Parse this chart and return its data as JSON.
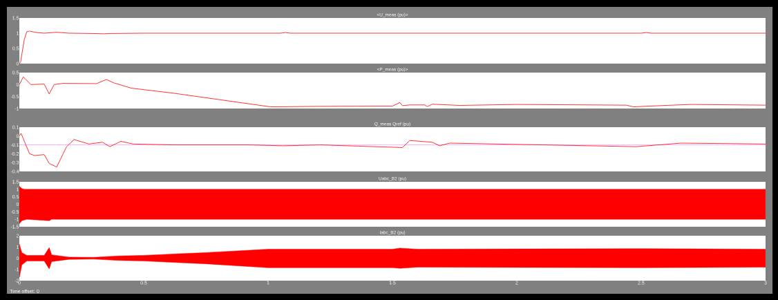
{
  "chart_data": [
    {
      "type": "line",
      "title": "<U_meas (pu)>",
      "xlim": [
        0,
        3
      ],
      "ylim": [
        0,
        1.5
      ],
      "yticks": [
        0,
        0.5,
        1,
        1.5
      ],
      "tick_labels": "y",
      "series": [
        {
          "color": "#ff0000",
          "x": [
            0,
            0.005,
            0.02,
            0.03,
            0.04,
            0.07,
            0.1,
            0.15,
            0.2,
            0.3,
            0.34,
            0.36,
            0.5,
            1.05,
            1.07,
            1.09,
            2.5,
            2.52,
            2.54,
            3
          ],
          "values": [
            0,
            0.05,
            0.8,
            1.05,
            1.07,
            1.02,
            1.0,
            1.03,
            1.0,
            0.99,
            0.98,
            0.99,
            1.0,
            1.0,
            1.02,
            1.0,
            1.0,
            1.02,
            1.0,
            1.0
          ]
        }
      ]
    },
    {
      "type": "line",
      "title": "<P_meas (pu)>",
      "xlim": [
        0,
        3
      ],
      "ylim": [
        -1,
        0.5
      ],
      "yticks": [
        -1,
        -0.5,
        0,
        0.5
      ],
      "tick_labels": "y",
      "series": [
        {
          "color": "#ff0000",
          "x": [
            0,
            0.016,
            0.046,
            0.1,
            0.12,
            0.14,
            0.175,
            0.31,
            0.35,
            0.38,
            0.45,
            0.62,
            1.01,
            1.21,
            1.5,
            1.53,
            1.54,
            1.57,
            1.63,
            1.64,
            1.66,
            1.77,
            2.0,
            2.44,
            2.47,
            2.6,
            2.7,
            3
          ],
          "values": [
            0,
            0.32,
            0,
            0.02,
            -0.39,
            0,
            0.05,
            0.04,
            0.21,
            0.07,
            -0.15,
            -0.36,
            -0.93,
            -0.91,
            -0.9,
            -0.75,
            -0.88,
            -0.85,
            -0.85,
            -0.92,
            -0.82,
            -0.87,
            -0.83,
            -0.86,
            -0.93,
            -0.87,
            -0.83,
            -0.86
          ]
        }
      ]
    },
    {
      "type": "line",
      "title": "Q_meas Qref (pu)",
      "xlim": [
        0,
        3
      ],
      "ylim": [
        -0.4,
        0.1
      ],
      "yticks": [
        -0.4,
        -0.3,
        -0.2,
        -0.1,
        0,
        0.1
      ],
      "tick_labels": "y",
      "series": [
        {
          "color": "#ff99ff",
          "x": [
            0,
            3
          ],
          "values": [
            -0.1,
            -0.1
          ]
        },
        {
          "color": "#ff0000",
          "x": [
            0,
            0.007,
            0.041,
            0.061,
            0.1,
            0.12,
            0.135,
            0.15,
            0.19,
            0.22,
            0.28,
            0.334,
            0.364,
            0.408,
            0.458,
            0.62,
            0.92,
            1.06,
            1.21,
            1.54,
            1.57,
            1.66,
            1.69,
            1.73,
            2.48,
            2.66,
            3
          ],
          "values": [
            0,
            0.03,
            -0.2,
            -0.22,
            -0.21,
            -0.31,
            -0.33,
            -0.35,
            -0.12,
            -0.04,
            -0.09,
            -0.07,
            -0.12,
            -0.06,
            -0.09,
            -0.1,
            -0.1,
            -0.11,
            -0.1,
            -0.13,
            -0.05,
            -0.07,
            -0.11,
            -0.08,
            -0.12,
            -0.08,
            -0.09
          ]
        }
      ]
    },
    {
      "type": "line",
      "title": "Uabc_B2 (pu)",
      "xlim": [
        0,
        3
      ],
      "ylim": [
        -1.5,
        1.5
      ],
      "yticks": [
        -1.5,
        -1,
        -0.5,
        0,
        0.5,
        1,
        1.5
      ],
      "tick_labels": "y",
      "series": [
        {
          "color": "#ff0000",
          "x": [
            0,
            0.01,
            0.02,
            0.03,
            0.12,
            0.13,
            3
          ],
          "values": [
            null,
            null,
            null,
            null,
            null,
            null,
            null
          ],
          "upper": [
            1.2,
            1.05,
            1.0,
            1.0,
            1.0,
            1.0,
            1.0
          ],
          "lower": [
            -1.3,
            -1.1,
            -1.05,
            -1.0,
            -1.1,
            -1.0,
            -1.0
          ]
        }
      ]
    },
    {
      "type": "line",
      "title": "Iabc_B2 (pu)",
      "xlim": [
        0,
        3
      ],
      "ylim": [
        -2,
        2
      ],
      "xticks": [
        0,
        0.5,
        1,
        1.5,
        2,
        2.5,
        3
      ],
      "yticks": [
        -2,
        -1,
        0,
        1,
        2
      ],
      "annotations": [
        "Time offset: 0"
      ],
      "series": [
        {
          "color": "#ff0000",
          "x": [
            0,
            0.01,
            0.03,
            0.1,
            0.12,
            0.13,
            0.2,
            0.3,
            0.4,
            0.5,
            0.75,
            1.0,
            1.5,
            1.53,
            1.6,
            2.5,
            3
          ],
          "values": [
            null,
            null,
            null,
            null,
            null,
            null,
            null,
            null,
            null,
            null,
            null,
            null,
            null,
            null,
            null,
            null,
            null
          ],
          "upper": [
            1.25,
            0.5,
            0.25,
            0.25,
            0.95,
            0.3,
            0.1,
            0.08,
            0.2,
            0.25,
            0.5,
            0.8,
            0.8,
            0.9,
            0.8,
            0.85,
            0.8
          ],
          "lower": [
            -1.7,
            -0.6,
            -0.25,
            -0.25,
            -0.95,
            -0.3,
            -0.1,
            -0.08,
            -0.2,
            -0.25,
            -0.5,
            -0.85,
            -0.85,
            -0.9,
            -0.8,
            -0.85,
            -0.8
          ]
        }
      ]
    }
  ]
}
